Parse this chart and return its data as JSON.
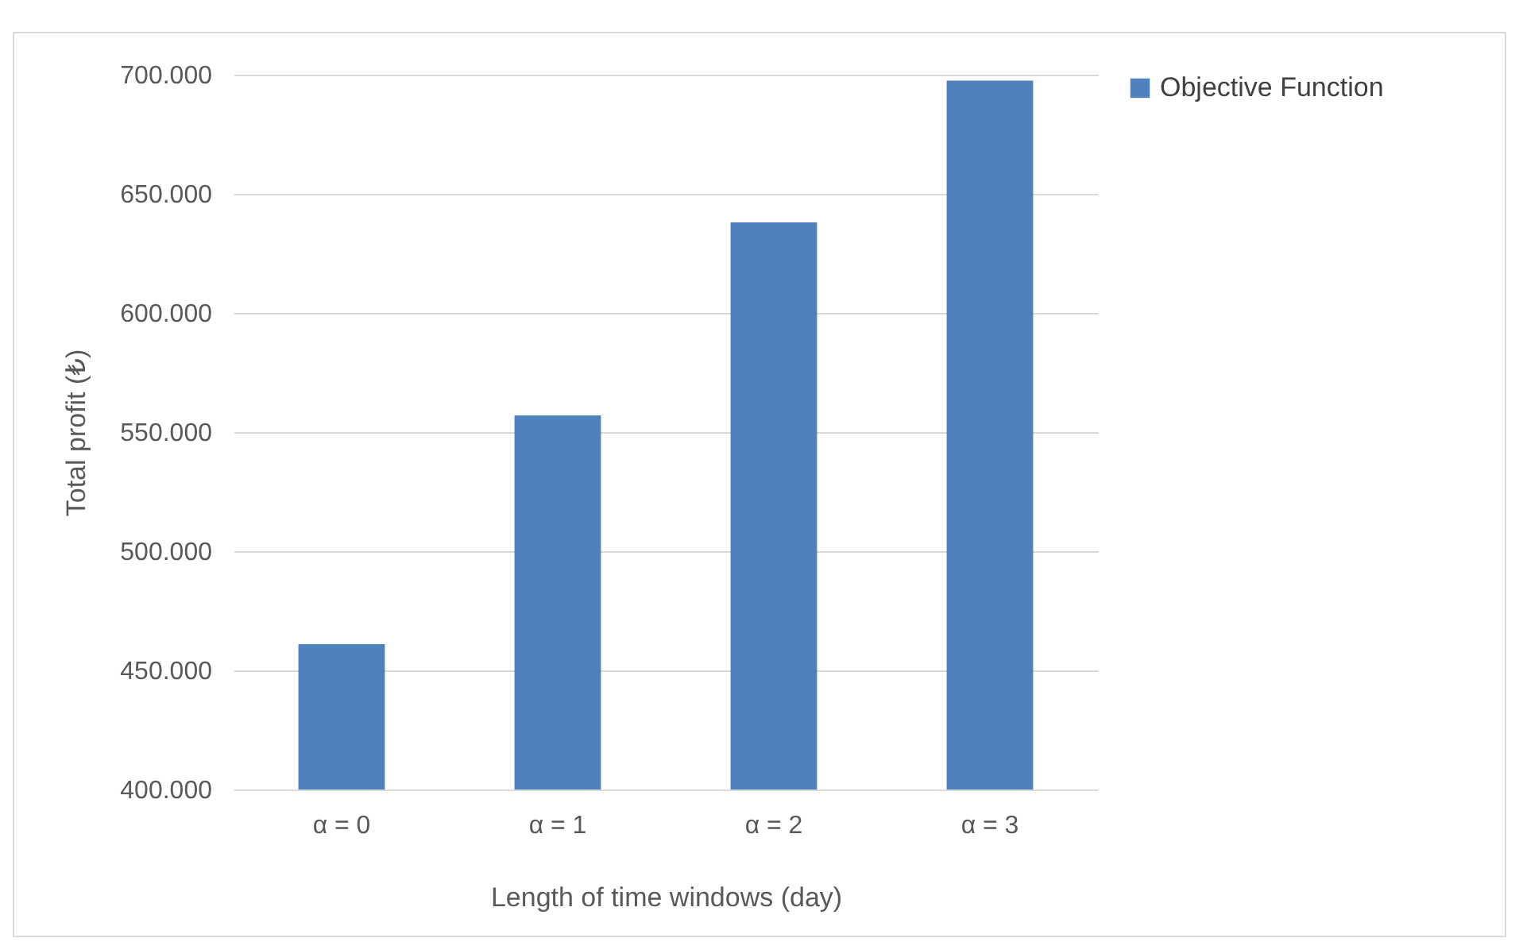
{
  "chart_data": {
    "type": "bar",
    "xlabel": "Length of time windows (day)",
    "ylabel": "Total profit (₺)",
    "categories": [
      "α = 0",
      "α = 1",
      "α = 2",
      "α = 3"
    ],
    "series": [
      {
        "name": "Objective Function",
        "color": "#4f81bd",
        "values": [
          461000,
          557000,
          638000,
          697500
        ]
      }
    ],
    "ylim": [
      400000,
      700000
    ],
    "yticks": [
      {
        "value": 400000,
        "label": "400.000"
      },
      {
        "value": 450000,
        "label": "450.000"
      },
      {
        "value": 500000,
        "label": "500.000"
      },
      {
        "value": 550000,
        "label": "550.000"
      },
      {
        "value": 600000,
        "label": "600.000"
      },
      {
        "value": 650000,
        "label": "650.000"
      },
      {
        "value": 700000,
        "label": "700.000"
      }
    ],
    "grid": "y",
    "legend": "right"
  }
}
